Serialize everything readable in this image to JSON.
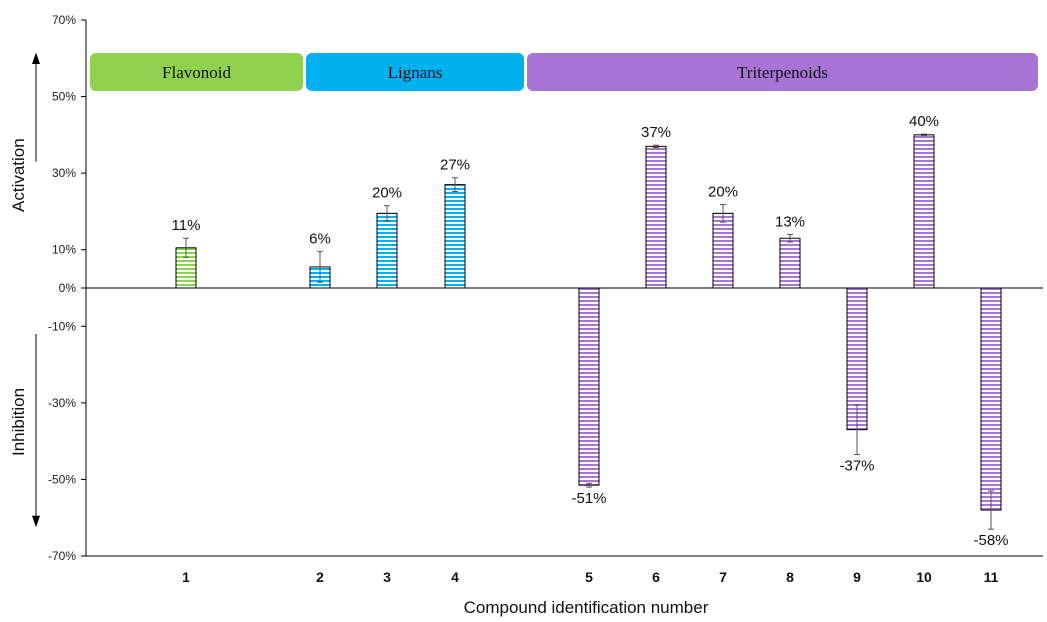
{
  "chart_data": {
    "type": "bar",
    "xlabel": "Compound identification number",
    "ylim": [
      -70,
      70
    ],
    "yticks": [
      70,
      50,
      30,
      10,
      0,
      -10,
      -30,
      -50,
      -70
    ],
    "ytick_labels": [
      "70%",
      "50%",
      "30%",
      "10%",
      "0%",
      "-10%",
      "-30%",
      "-50%",
      "-70%"
    ],
    "categories": [
      "1",
      "2",
      "3",
      "4",
      "5",
      "6",
      "7",
      "8",
      "9",
      "10",
      "11"
    ],
    "values": [
      10.5,
      5.5,
      19.5,
      27,
      -51.5,
      37,
      19.5,
      13,
      -37,
      40,
      -58
    ],
    "errors": [
      2.5,
      4,
      2,
      1.8,
      0.5,
      0.3,
      2.3,
      1,
      6.5,
      0.2,
      5
    ],
    "value_labels": [
      "11%",
      "6%",
      "20%",
      "27%",
      "-51%",
      "37%",
      "20%",
      "13%",
      "-37%",
      "40%",
      "-58%"
    ],
    "bar_groups": [
      "Flavonoid",
      "Lignans",
      "Lignans",
      "Lignans",
      "Triterpenoids",
      "Triterpenoids",
      "Triterpenoids",
      "Triterpenoids",
      "Triterpenoids",
      "Triterpenoids",
      "Triterpenoids"
    ],
    "groups": [
      {
        "name": "Flavonoid",
        "color": "#92D050"
      },
      {
        "name": "Lignans",
        "color": "#00B0F0"
      },
      {
        "name": "Triterpenoids",
        "color": "#A875D6"
      }
    ],
    "side_labels": {
      "upper": "Activation",
      "lower": "Inhibition"
    },
    "grid": false,
    "bar_fill": "horizontal-stripes"
  }
}
